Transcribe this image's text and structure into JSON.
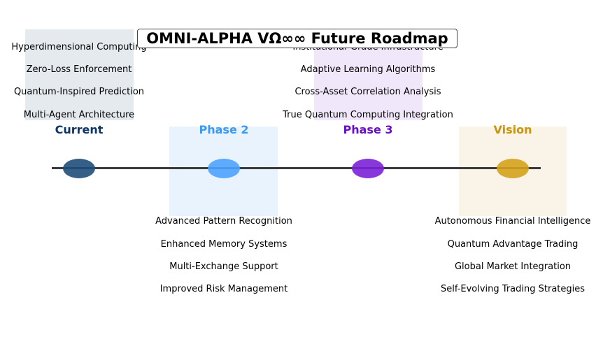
{
  "title": "OMNI-ALPHA VΩ∞∞ Future Roadmap",
  "phases": [
    {
      "label": "Current",
      "color": "#1f4e79",
      "label_color": "#0d3566",
      "box_color": "#cfd8e0",
      "placement": "above",
      "items": [
        "Hyperdimensional Computing",
        "Zero-Loss Enforcement",
        "Quantum-Inspired Prediction",
        "Multi-Agent Architecture"
      ]
    },
    {
      "label": "Phase 2",
      "color": "#4da3ff",
      "label_color": "#3b99f0",
      "box_color": "#d6e9fb",
      "placement": "below",
      "items": [
        "Advanced Pattern Recognition",
        "Enhanced Memory Systems",
        "Multi-Exchange Support",
        "Improved Risk Management"
      ]
    },
    {
      "label": "Phase 3",
      "color": "#7b22d6",
      "label_color": "#6a0fc8",
      "box_color": "#e3d5f5",
      "placement": "above",
      "items": [
        "Institutional-Grade Infrastructure",
        "Adaptive Learning Algorithms",
        "Cross-Asset Correlation Analysis",
        "True Quantum Computing Integration"
      ]
    },
    {
      "label": "Vision",
      "color": "#d4a21c",
      "label_color": "#c8960e",
      "box_color": "#f5ead3",
      "placement": "below",
      "items": [
        "Autonomous Financial Intelligence",
        "Quantum Advantage Trading",
        "Global Market Integration",
        "Self-Evolving Trading Strategies"
      ]
    }
  ]
}
